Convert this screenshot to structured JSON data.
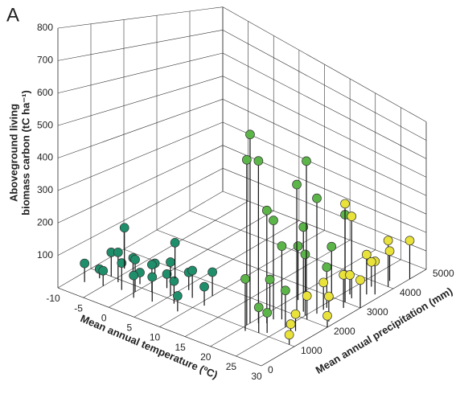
{
  "panel_label": "A",
  "chart_data": {
    "type": "scatter3d",
    "x_label": "Mean annual temperature (ºC)",
    "y_label": "Mean annual precipitation (mm)",
    "z_label": [
      "Aboveground living",
      "biomass carbon (tC ha⁻¹)"
    ],
    "xlim": [
      -10,
      30
    ],
    "xticks": [
      -10,
      -5,
      0,
      5,
      10,
      15,
      20,
      25,
      30
    ],
    "ylim": [
      0,
      5000
    ],
    "yticks": [
      0,
      1000,
      2000,
      3000,
      4000,
      5000
    ],
    "zlim": [
      0,
      800
    ],
    "zticks": [
      100,
      200,
      300,
      400,
      500,
      600,
      700,
      800
    ],
    "grid": true,
    "series": [
      {
        "color": "#1f8f6b",
        "x": [
          -8,
          -7,
          -6,
          -5,
          -4,
          -3,
          -2,
          -1,
          0,
          0,
          1,
          2,
          3,
          4,
          5,
          6,
          7,
          8,
          9,
          10,
          -6,
          2,
          11
        ],
        "y": [
          500,
          800,
          1000,
          600,
          900,
          1200,
          700,
          1100,
          800,
          1400,
          600,
          1000,
          1300,
          700,
          1100,
          1500,
          900,
          1300,
          700,
          1600,
          1400,
          1700,
          1200
        ],
        "values": [
          60,
          30,
          80,
          50,
          100,
          70,
          90,
          40,
          110,
          60,
          75,
          95,
          50,
          85,
          120,
          65,
          80,
          100,
          55,
          90,
          140,
          130,
          70
        ]
      },
      {
        "color": "#5cb548",
        "x": [
          20,
          20,
          21,
          21,
          22,
          22,
          23,
          23,
          24,
          24,
          25,
          25,
          26,
          26,
          20,
          21,
          27,
          22,
          24,
          25
        ],
        "y": [
          1200,
          1100,
          1300,
          2500,
          1400,
          1600,
          1700,
          1000,
          2000,
          2200,
          2100,
          1500,
          2300,
          2600,
          1800,
          900,
          3000,
          2600,
          1100,
          2900
        ],
        "values": [
          735,
          640,
          640,
          230,
          450,
          400,
          300,
          100,
          550,
          360,
          260,
          150,
          500,
          180,
          130,
          200,
          400,
          600,
          80,
          240
        ]
      },
      {
        "color": "#e9e23b",
        "x": [
          26,
          27,
          27,
          28,
          28,
          29,
          29,
          26,
          27,
          28,
          29,
          30,
          30,
          28,
          29,
          30,
          27,
          26
        ],
        "y": [
          2500,
          3000,
          3200,
          2800,
          3500,
          4000,
          3600,
          2000,
          1500,
          1200,
          2200,
          3000,
          4500,
          4200,
          1000,
          2000,
          3800,
          3300
        ],
        "values": [
          120,
          450,
          380,
          150,
          190,
          230,
          160,
          100,
          70,
          60,
          110,
          130,
          200,
          150,
          40,
          50,
          120,
          90
        ]
      }
    ]
  }
}
